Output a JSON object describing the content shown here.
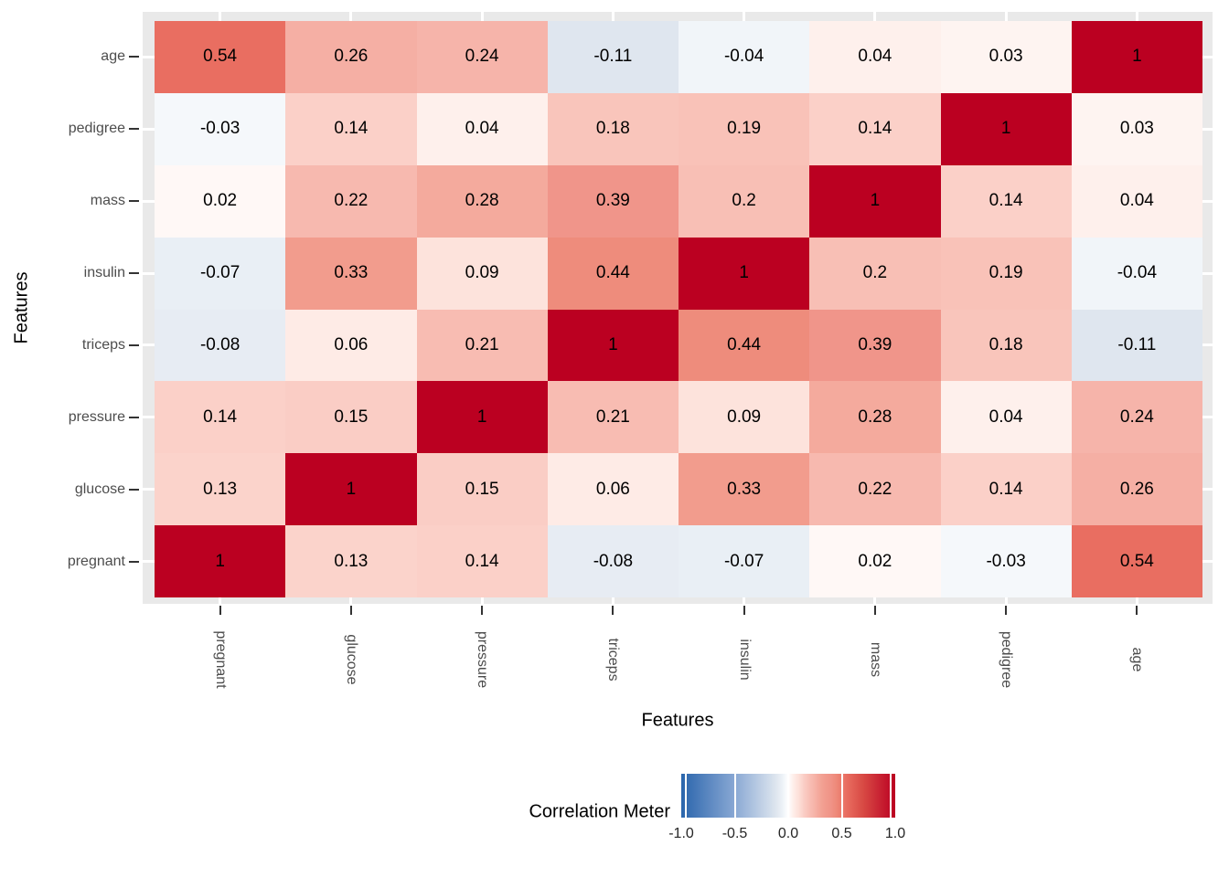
{
  "figure": {
    "background": "#FFFFFF",
    "panel_background": "#E9E9E9",
    "grid_color": "#FFFFFF",
    "axis_text_color": "#4D4D4D",
    "axis_title_color": "#000000",
    "tick_color": "#333333"
  },
  "chart_data": {
    "type": "heatmap",
    "title": "",
    "xlabel": "Features",
    "ylabel": "Features",
    "x_categories": [
      "pregnant",
      "glucose",
      "pressure",
      "triceps",
      "insulin",
      "mass",
      "pedigree",
      "age"
    ],
    "y_categories_top_to_bottom": [
      "age",
      "pedigree",
      "mass",
      "insulin",
      "triceps",
      "pressure",
      "glucose",
      "pregnant"
    ],
    "matrix": [
      [
        0.54,
        0.26,
        0.24,
        -0.11,
        -0.04,
        0.04,
        0.03,
        1
      ],
      [
        -0.03,
        0.14,
        0.04,
        0.18,
        0.19,
        0.14,
        1,
        0.03
      ],
      [
        0.02,
        0.22,
        0.28,
        0.39,
        0.2,
        1,
        0.14,
        0.04
      ],
      [
        -0.07,
        0.33,
        0.09,
        0.44,
        1,
        0.2,
        0.19,
        -0.04
      ],
      [
        -0.08,
        0.06,
        0.21,
        1,
        0.44,
        0.39,
        0.18,
        -0.11
      ],
      [
        0.14,
        0.15,
        1,
        0.21,
        0.09,
        0.28,
        0.04,
        0.24
      ],
      [
        0.13,
        1,
        0.15,
        0.06,
        0.33,
        0.22,
        0.14,
        0.26
      ],
      [
        1,
        0.13,
        0.14,
        -0.08,
        -0.07,
        0.02,
        -0.03,
        0.54
      ]
    ],
    "value_range": [
      -1,
      1
    ],
    "grid": "major-white-at-category-centers",
    "legend": {
      "title": "Correlation Meter",
      "position": "bottom",
      "ticks": [
        "-1.0",
        "-0.5",
        "0.0",
        "0.5",
        "1.0"
      ],
      "tick_values": [
        -1,
        -0.5,
        0,
        0.5,
        1
      ],
      "low_color": "#2A65AC",
      "mid_color": "#FFFFFF",
      "high_color": "#BB0021"
    },
    "colorscale": [
      [
        -1.0,
        "#2A65AC"
      ],
      [
        -0.5,
        "#89A8D4"
      ],
      [
        -0.11,
        "#DFE6EF"
      ],
      [
        -0.04,
        "#F1F5F9"
      ],
      [
        0.0,
        "#FFFFFF"
      ],
      [
        0.04,
        "#FEF0EC"
      ],
      [
        0.09,
        "#FDE3DC"
      ],
      [
        0.13,
        "#FBD3CB"
      ],
      [
        0.21,
        "#F8BCB2"
      ],
      [
        0.26,
        "#F5AFA4"
      ],
      [
        0.33,
        "#F29C8D"
      ],
      [
        0.39,
        "#F0958A"
      ],
      [
        0.44,
        "#EE8C7C"
      ],
      [
        0.54,
        "#E96E61"
      ],
      [
        0.7,
        "#D84A44"
      ],
      [
        0.85,
        "#C92433"
      ],
      [
        1.0,
        "#BB0021"
      ]
    ]
  }
}
